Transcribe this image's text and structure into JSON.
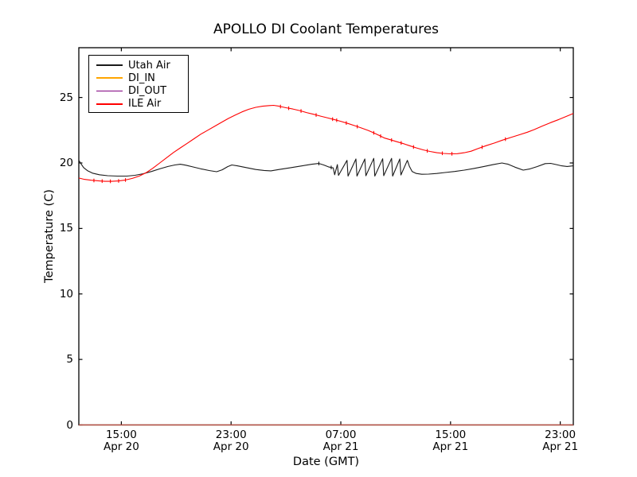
{
  "title": "APOLLO DI Coolant Temperatures",
  "xlabel": "Date (GMT)",
  "ylabel": "Temperature (C)",
  "colors": {
    "background": "#ffffff",
    "axes": "#000000",
    "utah_air": "#1a1a1a",
    "di_in": "#ffa500",
    "di_out": "#800080",
    "ile_air": "#ff0000"
  },
  "chart_data": {
    "type": "line",
    "title": "APOLLO DI Coolant Temperatures",
    "xlabel": "Date (GMT)",
    "ylabel": "Temperature (C)",
    "x_units": "hours since Apr 20 00:00 GMT",
    "xlim": [
      11.9,
      47.95
    ],
    "ylim": [
      0,
      28.8
    ],
    "yticks": [
      0,
      5,
      10,
      15,
      20,
      25
    ],
    "xticks": [
      {
        "hour": 15,
        "time": "15:00",
        "date": "Apr 20"
      },
      {
        "hour": 23,
        "time": "23:00",
        "date": "Apr 20"
      },
      {
        "hour": 31,
        "time": "07:00",
        "date": "Apr 21"
      },
      {
        "hour": 39,
        "time": "15:00",
        "date": "Apr 21"
      },
      {
        "hour": 47,
        "time": "23:00",
        "date": "Apr 21"
      }
    ],
    "grid": false,
    "legend_position": "upper left",
    "series": [
      {
        "name": "Utah Air",
        "color": "#1a1a1a",
        "width": 1.1,
        "blips": [
          29.4,
          30.3
        ],
        "points": [
          [
            11.9,
            20.2
          ],
          [
            12.05,
            19.95
          ],
          [
            12.25,
            19.65
          ],
          [
            12.55,
            19.4
          ],
          [
            12.9,
            19.22
          ],
          [
            13.4,
            19.1
          ],
          [
            14.0,
            19.03
          ],
          [
            14.7,
            19.0
          ],
          [
            15.4,
            19.0
          ],
          [
            16.0,
            19.06
          ],
          [
            16.6,
            19.18
          ],
          [
            17.2,
            19.35
          ],
          [
            17.8,
            19.55
          ],
          [
            18.4,
            19.73
          ],
          [
            18.9,
            19.85
          ],
          [
            19.3,
            19.9
          ],
          [
            19.7,
            19.83
          ],
          [
            20.2,
            19.7
          ],
          [
            20.8,
            19.55
          ],
          [
            21.4,
            19.42
          ],
          [
            21.95,
            19.33
          ],
          [
            22.35,
            19.48
          ],
          [
            22.75,
            19.72
          ],
          [
            23.05,
            19.85
          ],
          [
            23.45,
            19.78
          ],
          [
            24.1,
            19.65
          ],
          [
            24.8,
            19.5
          ],
          [
            25.4,
            19.43
          ],
          [
            25.9,
            19.4
          ],
          [
            26.5,
            19.5
          ],
          [
            27.3,
            19.63
          ],
          [
            28.1,
            19.77
          ],
          [
            28.9,
            19.9
          ],
          [
            29.4,
            19.96
          ],
          [
            29.75,
            19.85
          ],
          [
            30.1,
            19.7
          ],
          [
            30.45,
            19.62
          ],
          [
            30.55,
            19.1
          ],
          [
            30.75,
            19.88
          ],
          [
            30.83,
            19.05
          ],
          [
            31.45,
            20.2
          ],
          [
            31.53,
            19.0
          ],
          [
            32.1,
            20.3
          ],
          [
            32.18,
            19.0
          ],
          [
            32.75,
            20.3
          ],
          [
            32.83,
            19.02
          ],
          [
            33.4,
            20.35
          ],
          [
            33.48,
            19.0
          ],
          [
            34.05,
            20.32
          ],
          [
            34.13,
            19.03
          ],
          [
            34.7,
            20.35
          ],
          [
            34.78,
            19.0
          ],
          [
            35.3,
            20.3
          ],
          [
            35.38,
            19.08
          ],
          [
            35.85,
            20.2
          ],
          [
            36.0,
            19.75
          ],
          [
            36.2,
            19.35
          ],
          [
            36.5,
            19.2
          ],
          [
            36.9,
            19.14
          ],
          [
            37.4,
            19.15
          ],
          [
            38.0,
            19.2
          ],
          [
            38.6,
            19.27
          ],
          [
            39.3,
            19.35
          ],
          [
            40.0,
            19.45
          ],
          [
            40.7,
            19.58
          ],
          [
            41.4,
            19.72
          ],
          [
            42.1,
            19.87
          ],
          [
            42.75,
            20.0
          ],
          [
            43.2,
            19.9
          ],
          [
            43.7,
            19.68
          ],
          [
            44.3,
            19.45
          ],
          [
            44.8,
            19.55
          ],
          [
            45.3,
            19.72
          ],
          [
            45.9,
            19.95
          ],
          [
            46.3,
            19.97
          ],
          [
            46.7,
            19.88
          ],
          [
            47.1,
            19.78
          ],
          [
            47.5,
            19.73
          ],
          [
            47.95,
            19.78
          ]
        ]
      },
      {
        "name": "DI_IN",
        "color": "#ffa500",
        "width": 1.3,
        "blips": [],
        "points": [
          [
            11.9,
            0
          ],
          [
            47.95,
            0
          ]
        ]
      },
      {
        "name": "DI_OUT",
        "color": "#800080",
        "width": 1.3,
        "opacity": 0.55,
        "blips": [],
        "points": [
          [
            11.9,
            0
          ],
          [
            47.95,
            0
          ]
        ]
      },
      {
        "name": "ILE Air",
        "color": "#ff0000",
        "width": 1.1,
        "blips": [
          13.0,
          13.6,
          14.2,
          14.8,
          15.3,
          26.6,
          27.2,
          28.1,
          29.2,
          30.4,
          30.7,
          31.4,
          32.2,
          33.4,
          33.9,
          34.7,
          35.4,
          36.3,
          37.3,
          38.4,
          39.1,
          41.3,
          43.0
        ],
        "points": [
          [
            11.9,
            18.85
          ],
          [
            12.3,
            18.75
          ],
          [
            12.8,
            18.68
          ],
          [
            13.3,
            18.64
          ],
          [
            13.8,
            18.6
          ],
          [
            14.3,
            18.6
          ],
          [
            14.8,
            18.63
          ],
          [
            15.3,
            18.7
          ],
          [
            15.8,
            18.82
          ],
          [
            16.3,
            19.0
          ],
          [
            16.8,
            19.25
          ],
          [
            17.3,
            19.6
          ],
          [
            17.8,
            20.0
          ],
          [
            18.3,
            20.4
          ],
          [
            18.8,
            20.8
          ],
          [
            19.3,
            21.15
          ],
          [
            19.8,
            21.5
          ],
          [
            20.3,
            21.85
          ],
          [
            20.8,
            22.2
          ],
          [
            21.3,
            22.5
          ],
          [
            21.8,
            22.8
          ],
          [
            22.3,
            23.1
          ],
          [
            22.8,
            23.4
          ],
          [
            23.3,
            23.65
          ],
          [
            23.8,
            23.9
          ],
          [
            24.3,
            24.1
          ],
          [
            24.8,
            24.25
          ],
          [
            25.3,
            24.33
          ],
          [
            25.8,
            24.38
          ],
          [
            26.1,
            24.4
          ],
          [
            26.5,
            24.33
          ],
          [
            27.0,
            24.22
          ],
          [
            27.5,
            24.12
          ],
          [
            28.0,
            24.0
          ],
          [
            28.5,
            23.85
          ],
          [
            29.0,
            23.72
          ],
          [
            29.5,
            23.58
          ],
          [
            30.0,
            23.45
          ],
          [
            30.5,
            23.32
          ],
          [
            31.0,
            23.18
          ],
          [
            31.5,
            23.02
          ],
          [
            32.0,
            22.85
          ],
          [
            32.5,
            22.67
          ],
          [
            33.0,
            22.48
          ],
          [
            33.4,
            22.3
          ],
          [
            33.8,
            22.1
          ],
          [
            34.2,
            21.9
          ],
          [
            34.6,
            21.78
          ],
          [
            35.0,
            21.65
          ],
          [
            35.5,
            21.5
          ],
          [
            36.0,
            21.32
          ],
          [
            36.5,
            21.15
          ],
          [
            37.0,
            21.0
          ],
          [
            37.5,
            20.88
          ],
          [
            38.0,
            20.78
          ],
          [
            38.5,
            20.73
          ],
          [
            39.0,
            20.7
          ],
          [
            39.5,
            20.71
          ],
          [
            40.0,
            20.78
          ],
          [
            40.5,
            20.9
          ],
          [
            41.0,
            21.1
          ],
          [
            41.6,
            21.32
          ],
          [
            42.2,
            21.52
          ],
          [
            42.8,
            21.75
          ],
          [
            43.4,
            21.95
          ],
          [
            44.0,
            22.15
          ],
          [
            44.6,
            22.35
          ],
          [
            45.1,
            22.55
          ],
          [
            45.7,
            22.82
          ],
          [
            46.3,
            23.08
          ],
          [
            46.9,
            23.32
          ],
          [
            47.5,
            23.58
          ],
          [
            47.95,
            23.78
          ]
        ]
      }
    ]
  }
}
